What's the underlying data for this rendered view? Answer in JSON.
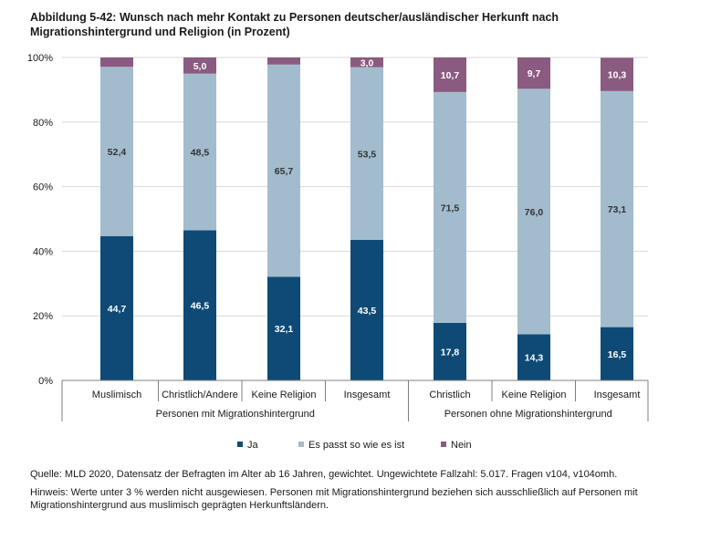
{
  "title": {
    "number": "Abbildung 5-42:",
    "text": "Wunsch nach mehr Kontakt zu Personen deutscher/ausländischer Herkunft nach Migrationshintergrund und Religion (in Prozent)"
  },
  "colors": {
    "ja": "#0e4a75",
    "passt": "#a3bccd",
    "nein": "#8b5a80",
    "grid": "#d9d9d9",
    "axis": "#7f7f7f"
  },
  "chart_data": {
    "type": "bar",
    "stacked": true,
    "percent_stacked": true,
    "ylim": [
      0,
      100
    ],
    "yticks": [
      "0%",
      "20%",
      "40%",
      "60%",
      "80%",
      "100%"
    ],
    "ytick_values": [
      0,
      20,
      40,
      60,
      80,
      100
    ],
    "categories": [
      "Muslimisch",
      "Christlich/Andere",
      "Keine Religion",
      "Insgesamt",
      "Christlich",
      "Keine Religion",
      "Insgesamt"
    ],
    "groups": [
      {
        "label": "Personen mit Migrationshintergrund",
        "span": [
          0,
          3
        ]
      },
      {
        "label": "Personen ohne Migrationshintergrund",
        "span": [
          4,
          6
        ]
      }
    ],
    "series": [
      {
        "name": "Ja",
        "color_key": "ja",
        "label_color": "#ffffff",
        "values": [
          44.7,
          46.5,
          32.1,
          43.5,
          17.8,
          14.3,
          16.5
        ],
        "labels": [
          "44,7",
          "46,5",
          "32,1",
          "43,5",
          "17,8",
          "14,3",
          "16,5"
        ]
      },
      {
        "name": "Es passt so wie es ist",
        "color_key": "passt",
        "label_color": "#333333",
        "values": [
          52.4,
          48.5,
          65.7,
          53.5,
          71.5,
          76.0,
          73.1
        ],
        "labels": [
          "52,4",
          "48,5",
          "65,7",
          "53,5",
          "71,5",
          "76,0",
          "73,1"
        ]
      },
      {
        "name": "Nein",
        "color_key": "nein",
        "label_color": "#ffffff",
        "values": [
          2.9,
          5.0,
          2.2,
          3.0,
          10.7,
          9.7,
          10.3
        ],
        "labels": [
          "",
          "5,0",
          "",
          "3,0",
          "10,7",
          "9,7",
          "10,3"
        ]
      }
    ],
    "legend": [
      "Ja",
      "Es passt so wie es ist",
      "Nein"
    ],
    "legend_position": "bottom"
  },
  "footer": {
    "source": "Quelle: MLD 2020, Datensatz der Befragten im Alter ab 16 Jahren, gewichtet. Ungewichtete Fallzahl: 5.017. Fragen v104, v104omh.",
    "note": "Hinweis: Werte unter 3 % werden nicht ausgewiesen. Personen mit Migrationshintergrund beziehen sich ausschließlich auf Personen mit Migrationshintergrund aus muslimisch geprägten Herkunftsländern."
  }
}
